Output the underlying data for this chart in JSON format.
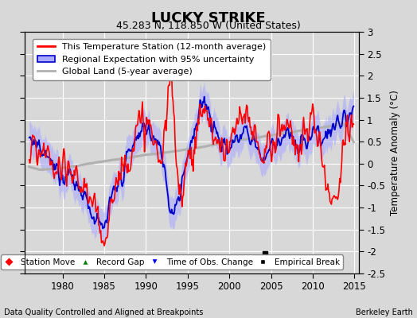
{
  "title": "LUCKY STRIKE",
  "subtitle": "45.283 N, 118.850 W (United States)",
  "xlabel_left": "Data Quality Controlled and Aligned at Breakpoints",
  "xlabel_right": "Berkeley Earth",
  "ylabel": "Temperature Anomaly (°C)",
  "xlim": [
    1975.5,
    2015.5
  ],
  "ylim": [
    -2.5,
    3.0
  ],
  "yticks": [
    -2.5,
    -2,
    -1.5,
    -1,
    -0.5,
    0,
    0.5,
    1,
    1.5,
    2,
    2.5,
    3
  ],
  "xticks": [
    1980,
    1985,
    1990,
    1995,
    2000,
    2005,
    2010,
    2015
  ],
  "bg_color": "#d8d8d8",
  "plot_bg_color": "#d8d8d8",
  "grid_color": "#ffffff",
  "station_color": "#ff0000",
  "regional_color": "#0000cc",
  "regional_shade_color": "#aaaaff",
  "global_color": "#b0b0b0",
  "empirical_break_year": 2004.3,
  "empirical_break_value": -2.05,
  "title_fontsize": 13,
  "subtitle_fontsize": 9,
  "legend_fontsize": 8,
  "tick_fontsize": 8.5,
  "ylabel_fontsize": 8.5
}
